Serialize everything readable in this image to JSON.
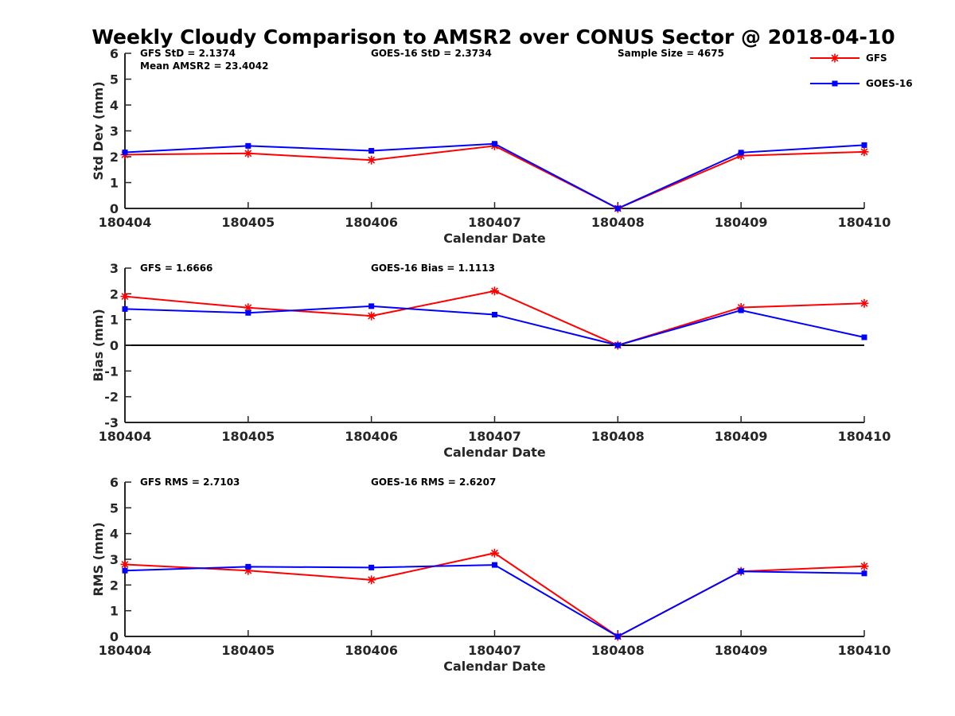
{
  "figure": {
    "title": "Weekly Cloudy Comparison to AMSR2 over CONUS Sector @ 2018-04-10"
  },
  "legend": {
    "placement": "top-right",
    "items": [
      {
        "name": "GFS",
        "color": "#ff0000",
        "marker": "asterisk"
      },
      {
        "name": "GOES-16",
        "color": "#0000ff",
        "marker": "square"
      }
    ]
  },
  "chart_data": [
    {
      "type": "line",
      "id": "stddev",
      "xlabel": "Calendar Date",
      "ylabel": "Std Dev (mm)",
      "categories": [
        "180404",
        "180405",
        "180406",
        "180407",
        "180408",
        "180409",
        "180410"
      ],
      "ylim": [
        0,
        6
      ],
      "yticks": [
        "0",
        "1",
        "2",
        "3",
        "4",
        "5",
        "6"
      ],
      "zero_line": false,
      "series": [
        {
          "name": "GFS",
          "color": "#ff0000",
          "marker": "asterisk",
          "values": [
            2.08,
            2.13,
            1.87,
            2.42,
            0.0,
            2.04,
            2.19
          ]
        },
        {
          "name": "GOES-16",
          "color": "#0000ff",
          "marker": "square",
          "values": [
            2.17,
            2.42,
            2.23,
            2.5,
            0.0,
            2.16,
            2.45
          ]
        }
      ],
      "annotations": [
        {
          "text": "GFS StD = 2.1374",
          "slot": "left-1"
        },
        {
          "text": "Mean AMSR2 = 23.4042",
          "slot": "left-2"
        },
        {
          "text": "GOES-16 StD = 2.3734",
          "slot": "mid-1"
        },
        {
          "text": "Sample Size = 4675",
          "slot": "right-1"
        }
      ]
    },
    {
      "type": "line",
      "id": "bias",
      "xlabel": "Calendar Date",
      "ylabel": "Bias (mm)",
      "categories": [
        "180404",
        "180405",
        "180406",
        "180407",
        "180408",
        "180409",
        "180410"
      ],
      "ylim": [
        -3,
        3
      ],
      "yticks": [
        "-3",
        "-2",
        "-1",
        "0",
        "1",
        "2",
        "3"
      ],
      "zero_line": true,
      "series": [
        {
          "name": "GFS",
          "color": "#ff0000",
          "marker": "asterisk",
          "values": [
            1.9,
            1.46,
            1.14,
            2.11,
            0.0,
            1.47,
            1.63
          ]
        },
        {
          "name": "GOES-16",
          "color": "#0000ff",
          "marker": "square",
          "values": [
            1.41,
            1.26,
            1.52,
            1.19,
            0.0,
            1.36,
            0.31
          ]
        }
      ],
      "annotations": [
        {
          "text": "GFS = 1.6666",
          "slot": "left-1"
        },
        {
          "text": "GOES-16 Bias  = 1.1113",
          "slot": "mid-1"
        }
      ]
    },
    {
      "type": "line",
      "id": "rms",
      "xlabel": "Calendar Date",
      "ylabel": "RMS (mm)",
      "categories": [
        "180404",
        "180405",
        "180406",
        "180407",
        "180408",
        "180409",
        "180410"
      ],
      "ylim": [
        0,
        6
      ],
      "yticks": [
        "0",
        "1",
        "2",
        "3",
        "4",
        "5",
        "6"
      ],
      "zero_line": false,
      "series": [
        {
          "name": "GFS",
          "color": "#ff0000",
          "marker": "asterisk",
          "values": [
            2.8,
            2.56,
            2.2,
            3.24,
            0.0,
            2.53,
            2.73
          ]
        },
        {
          "name": "GOES-16",
          "color": "#0000ff",
          "marker": "square",
          "values": [
            2.56,
            2.71,
            2.68,
            2.78,
            0.0,
            2.53,
            2.45
          ]
        }
      ],
      "annotations": [
        {
          "text": "GFS RMS = 2.7103",
          "slot": "left-1"
        },
        {
          "text": "GOES-16 RMS = 2.6207",
          "slot": "mid-1"
        }
      ]
    }
  ]
}
